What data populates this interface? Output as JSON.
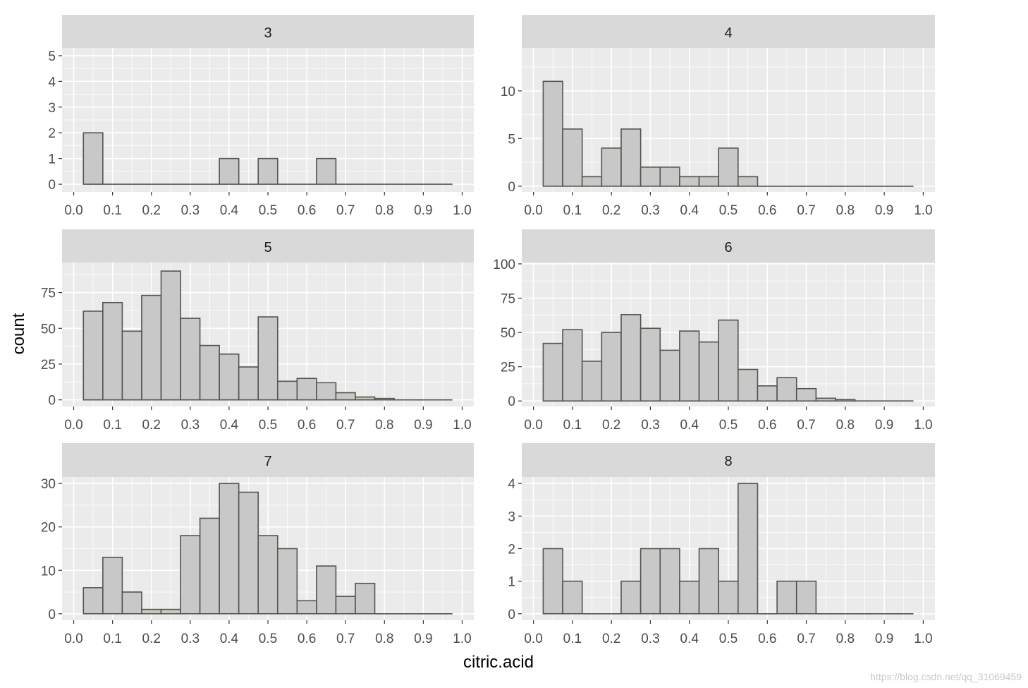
{
  "chart_data": {
    "type": "bar",
    "facet_variable": "quality",
    "xlabel": "citric.acid",
    "ylabel": "count",
    "x_ticks": [
      "0.0",
      "0.1",
      "0.2",
      "0.3",
      "0.4",
      "0.5",
      "0.6",
      "0.7",
      "0.8",
      "0.9",
      "1.0"
    ],
    "xlim": [
      -0.03,
      1.03
    ],
    "bin_width": 0.05,
    "bin_starts": [
      0.025,
      0.075,
      0.125,
      0.175,
      0.225,
      0.275,
      0.325,
      0.375,
      0.425,
      0.475,
      0.525,
      0.575,
      0.625,
      0.675,
      0.725,
      0.775,
      0.825,
      0.875,
      0.925
    ],
    "grid": true,
    "panels": [
      {
        "label": "3",
        "ylim": [
          -0.3,
          5.3
        ],
        "y_ticks": [
          0,
          1,
          2,
          3,
          4,
          5
        ],
        "values": [
          2,
          0,
          0,
          0,
          0,
          0,
          0,
          1,
          0,
          1,
          0,
          0,
          1,
          0,
          0,
          0,
          0,
          0,
          0
        ]
      },
      {
        "label": "4",
        "ylim": [
          -0.6,
          14.5
        ],
        "y_ticks": [
          0,
          5,
          10
        ],
        "values": [
          11,
          6,
          1,
          4,
          6,
          2,
          2,
          1,
          1,
          4,
          1,
          0,
          0,
          0,
          0,
          0,
          0,
          0,
          0
        ]
      },
      {
        "label": "5",
        "ylim": [
          -4.6,
          96
        ],
        "y_ticks": [
          0,
          25,
          50,
          75
        ],
        "values": [
          62,
          68,
          48,
          73,
          90,
          57,
          38,
          32,
          23,
          58,
          13,
          15,
          12,
          5,
          2,
          1,
          0,
          0,
          0
        ]
      },
      {
        "label": "6",
        "ylim": [
          -4,
          101
        ],
        "y_ticks": [
          0,
          25,
          50,
          75,
          100
        ],
        "values": [
          42,
          52,
          29,
          50,
          63,
          53,
          37,
          51,
          43,
          59,
          23,
          11,
          17,
          9,
          2,
          1,
          0,
          0,
          0
        ]
      },
      {
        "label": "7",
        "ylim": [
          -1.5,
          31.5
        ],
        "y_ticks": [
          0,
          10,
          20,
          30
        ],
        "values": [
          6,
          13,
          5,
          1,
          1,
          18,
          22,
          30,
          28,
          18,
          15,
          3,
          11,
          4,
          7,
          0,
          0,
          0,
          0
        ]
      },
      {
        "label": "8",
        "ylim": [
          -0.2,
          4.2
        ],
        "y_ticks": [
          0,
          1,
          2,
          3,
          4
        ],
        "values": [
          2,
          1,
          0,
          0,
          1,
          2,
          2,
          1,
          2,
          1,
          4,
          0,
          1,
          1,
          0,
          0,
          0,
          0,
          0
        ]
      }
    ]
  },
  "watermark": "https://blog.csdn.net/qq_31069459"
}
